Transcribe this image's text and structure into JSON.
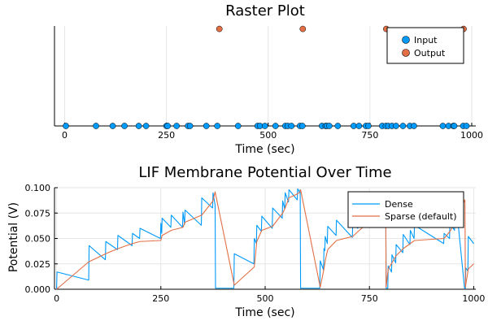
{
  "chart_data": [
    {
      "type": "scatter",
      "title": "Raster Plot",
      "xlabel": "Time (sec)",
      "ylabel": "",
      "xlim": [
        -25,
        1010
      ],
      "ylim": [
        0,
        1.03
      ],
      "xticks": [
        0,
        250,
        500,
        750,
        1000
      ],
      "xtick_labels": [
        "0",
        "250",
        "500",
        "750",
        "1000"
      ],
      "grid": true,
      "legend_position": "top-right",
      "series": [
        {
          "name": "Input",
          "color": "#009AFA",
          "y": 0,
          "x": [
            3,
            77,
            118,
            147,
            182,
            200,
            250,
            253,
            275,
            303,
            308,
            348,
            375,
            426,
            474,
            480,
            492,
            518,
            542,
            548,
            557,
            578,
            584,
            632,
            641,
            644,
            650,
            671,
            710,
            723,
            740,
            746,
            780,
            789,
            795,
            804,
            814,
            831,
            848,
            858,
            929,
            943,
            955,
            957,
            979,
            987
          ]
        },
        {
          "name": "Output",
          "color": "#E26F46",
          "y": 1,
          "x": [
            380,
            585,
            790,
            980
          ]
        }
      ]
    },
    {
      "type": "line",
      "title": "LIF Membrane Potential Over Time",
      "xlabel": "Time (sec)",
      "ylabel": "Potential (V)",
      "xlim": [
        -5,
        1005
      ],
      "ylim": [
        0,
        0.1
      ],
      "xticks": [
        0,
        250,
        500,
        750,
        1000
      ],
      "xtick_labels": [
        "0",
        "250",
        "500",
        "750",
        "1000"
      ],
      "yticks": [
        0,
        0.025,
        0.05,
        0.075,
        0.1
      ],
      "ytick_labels": [
        "0.000",
        "0.025",
        "0.050",
        "0.075",
        "0.100"
      ],
      "grid": true,
      "legend_position": "top-right",
      "series": [
        {
          "name": "Dense",
          "color": "#009AFA",
          "x": [
            0,
            1,
            77,
            78,
            117,
            118,
            146,
            147,
            181,
            182,
            199,
            200,
            249,
            250,
            252,
            253,
            274,
            275,
            302,
            303,
            307,
            308,
            347,
            348,
            374,
            375,
            380,
            381,
            425,
            426,
            473,
            474,
            479,
            480,
            491,
            492,
            517,
            518,
            541,
            542,
            547,
            548,
            556,
            557,
            577,
            578,
            583,
            584,
            585,
            586,
            631,
            632,
            640,
            641,
            643,
            644,
            649,
            650,
            670,
            671,
            709,
            710,
            722,
            723,
            739,
            740,
            745,
            746,
            779,
            780,
            788,
            789,
            790,
            791,
            794,
            795,
            803,
            804,
            813,
            814,
            830,
            831,
            847,
            848,
            857,
            858,
            928,
            929,
            942,
            943,
            954,
            955,
            956,
            957,
            978,
            979,
            980,
            981,
            986,
            987,
            1000
          ],
          "y": [
            0.0,
            0.017,
            0.009,
            0.043,
            0.029,
            0.047,
            0.039,
            0.053,
            0.043,
            0.055,
            0.05,
            0.06,
            0.05,
            0.065,
            0.055,
            0.07,
            0.061,
            0.073,
            0.061,
            0.076,
            0.064,
            0.078,
            0.063,
            0.09,
            0.08,
            0.095,
            0.083,
            0.001,
            0.001,
            0.035,
            0.025,
            0.05,
            0.045,
            0.063,
            0.057,
            0.072,
            0.06,
            0.08,
            0.07,
            0.087,
            0.079,
            0.095,
            0.086,
            0.098,
            0.088,
            0.099,
            0.095,
            0.098,
            0.001,
            0.001,
            0.001,
            0.028,
            0.019,
            0.04,
            0.038,
            0.052,
            0.045,
            0.062,
            0.053,
            0.068,
            0.051,
            0.064,
            0.06,
            0.069,
            0.065,
            0.074,
            0.07,
            0.079,
            0.07,
            0.085,
            0.078,
            0.095,
            0.001,
            0.001,
            0.001,
            0.023,
            0.017,
            0.034,
            0.026,
            0.044,
            0.036,
            0.054,
            0.044,
            0.058,
            0.05,
            0.063,
            0.045,
            0.055,
            0.05,
            0.065,
            0.058,
            0.074,
            0.072,
            0.088,
            0.001,
            0.001,
            0.001,
            0.021,
            0.018,
            0.052,
            0.045
          ]
        },
        {
          "name": "Sparse (default)",
          "color": "#E26F46",
          "x": [
            0,
            77,
            118,
            147,
            182,
            200,
            250,
            253,
            275,
            303,
            308,
            348,
            375,
            380,
            426,
            474,
            480,
            492,
            518,
            542,
            548,
            557,
            578,
            584,
            585,
            632,
            641,
            644,
            650,
            671,
            710,
            723,
            740,
            746,
            780,
            789,
            790,
            795,
            804,
            814,
            831,
            848,
            858,
            929,
            943,
            955,
            957,
            979,
            980,
            987,
            1000
          ],
          "y": [
            0.0,
            0.027,
            0.035,
            0.04,
            0.045,
            0.047,
            0.048,
            0.053,
            0.058,
            0.061,
            0.066,
            0.073,
            0.087,
            0.096,
            0.004,
            0.022,
            0.047,
            0.058,
            0.062,
            0.075,
            0.08,
            0.09,
            0.094,
            0.096,
            0.098,
            0.002,
            0.02,
            0.028,
            0.039,
            0.048,
            0.052,
            0.057,
            0.063,
            0.068,
            0.075,
            0.096,
            0.002,
            0.02,
            0.026,
            0.033,
            0.04,
            0.045,
            0.048,
            0.05,
            0.057,
            0.065,
            0.07,
            0.088,
            0.002,
            0.02,
            0.025
          ]
        }
      ]
    }
  ]
}
